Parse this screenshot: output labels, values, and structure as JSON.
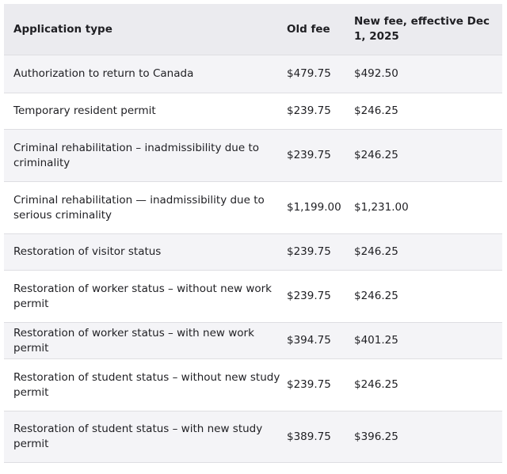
{
  "table": {
    "headers": [
      "Application type",
      "Old fee",
      "New fee, effective Dec 1, 2025"
    ],
    "rows": [
      [
        "Authorization to return to Canada",
        "$479.75",
        "$492.50"
      ],
      [
        "Temporary resident permit",
        "$239.75",
        "$246.25"
      ],
      [
        "Criminal rehabilitation – inadmissibility due to criminality",
        "$239.75",
        "$246.25"
      ],
      [
        "Criminal rehabilitation — inadmissibility due to serious criminality",
        "$1,199.00",
        "$1,231.00"
      ],
      [
        "Restoration of visitor status",
        "$239.75",
        "$246.25"
      ],
      [
        "Restoration of worker status – without new work permit",
        "$239.75",
        "$246.25"
      ],
      [
        "Restoration of worker status – with new work permit",
        "$394.75",
        "$401.25"
      ],
      [
        "Restoration of student status – without new study permit",
        "$239.75",
        "$246.25"
      ],
      [
        "Restoration of student status – with new study permit",
        "$389.75",
        "$396.25"
      ]
    ]
  }
}
